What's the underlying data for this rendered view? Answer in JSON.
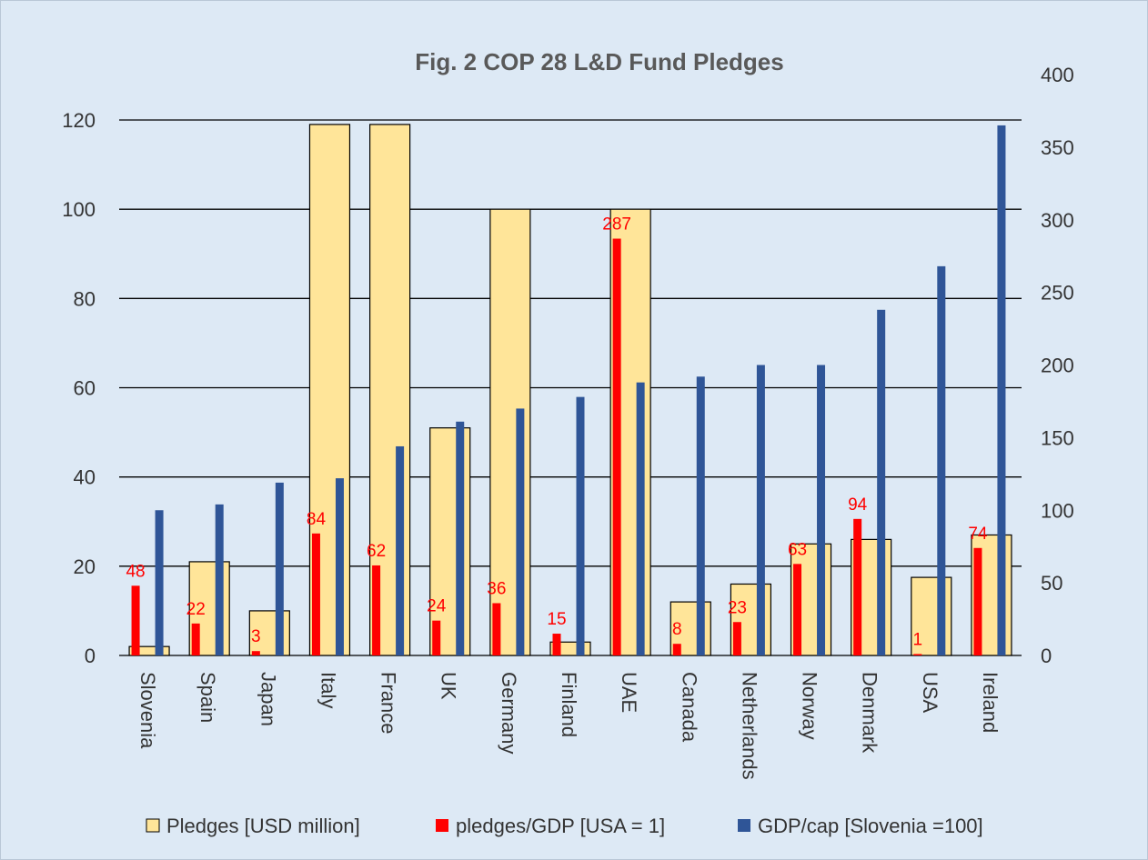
{
  "chart_data": {
    "type": "bar",
    "title": "Fig. 2 COP 28 L&D Fund Pledges",
    "categories": [
      "Slovenia",
      "Spain",
      "Japan",
      "Italy",
      "France",
      "UK",
      "Germany",
      "Finland",
      "UAE",
      "Canada",
      "Netherlands",
      "Norway",
      "Denmark",
      "USA",
      "Ireland"
    ],
    "series": [
      {
        "name": "Pledges [USD million]",
        "axis": "left",
        "color": "#ffe599",
        "values": [
          2,
          21,
          10,
          119,
          119,
          51,
          100,
          3,
          100,
          12,
          16,
          25,
          26,
          17.5,
          27
        ]
      },
      {
        "name": "pledges/GDP [USA = 1]",
        "axis": "right",
        "color": "#ff0000",
        "values": [
          48,
          22,
          3,
          84,
          62,
          24,
          36,
          15,
          287,
          8,
          23,
          63,
          94,
          1,
          74
        ],
        "labels": [
          "48",
          "22",
          "3",
          "84",
          "62",
          "24",
          "36",
          "15",
          "287",
          "8",
          "23",
          "63",
          "94",
          "1",
          "74"
        ]
      },
      {
        "name": "GDP/cap [Slovenia =100]",
        "axis": "right",
        "color": "#2f5597",
        "values": [
          100,
          104,
          119,
          122,
          144,
          161,
          170,
          178,
          188,
          192,
          200,
          200,
          238,
          268,
          365
        ]
      }
    ],
    "y_left": {
      "ylim": [
        0,
        120
      ],
      "ticks": [
        "0",
        "20",
        "40",
        "60",
        "80",
        "100",
        "120"
      ]
    },
    "y_right": {
      "ylim": [
        0,
        400
      ],
      "ticks": [
        "0",
        "50",
        "100",
        "150",
        "200",
        "250",
        "300",
        "350",
        "400"
      ]
    },
    "grid": true,
    "legend_position": "bottom"
  }
}
